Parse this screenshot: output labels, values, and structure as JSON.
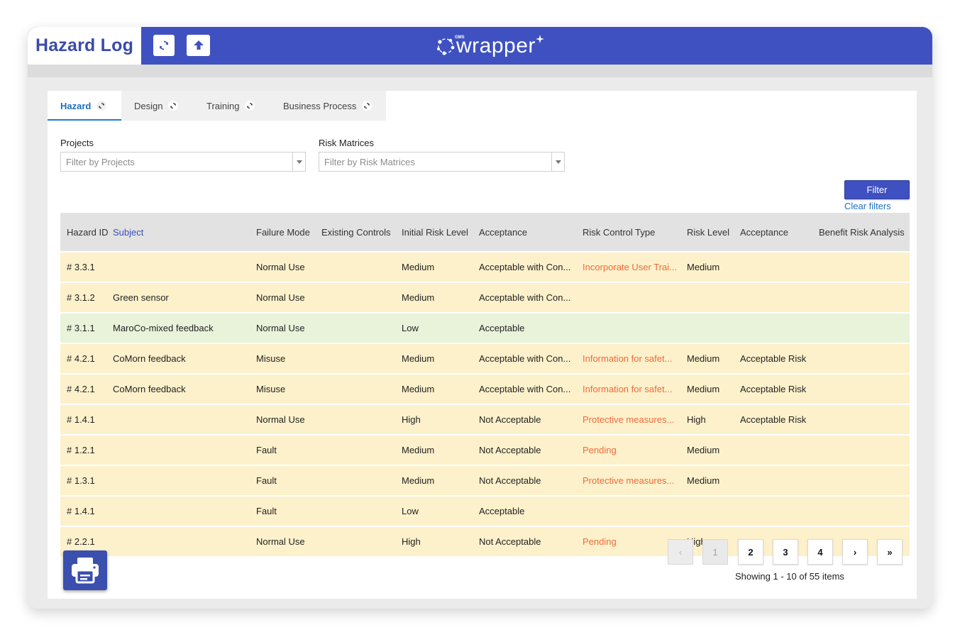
{
  "app": {
    "title": "Hazard Log",
    "logo_text": "wrapper",
    "logo_superscript": "GMS"
  },
  "toolbar": {
    "refresh_icon": "refresh-icon",
    "upload_icon": "upload-arrow-icon"
  },
  "tabs": [
    {
      "label": "Hazard",
      "active": true
    },
    {
      "label": "Design",
      "active": false
    },
    {
      "label": "Training",
      "active": false
    },
    {
      "label": "Business Process",
      "active": false
    }
  ],
  "filters": {
    "projects_label": "Projects",
    "projects_placeholder": "Filter by Projects",
    "risk_label": "Risk Matrices",
    "risk_placeholder": "Filter by Risk Matrices",
    "filter_button": "Filter",
    "clear_link": "Clear filters"
  },
  "grid": {
    "columns": [
      "Hazard ID",
      "Subject",
      "Failure Mode",
      "Existing Controls",
      "Initial Risk Level",
      "Acceptance",
      "Risk Control Type",
      "Risk Level",
      "Acceptance",
      "Benefit Risk Analysis"
    ],
    "rows": [
      {
        "id": "# 3.3.1",
        "subject": "",
        "failure_mode": "Normal Use",
        "existing_controls": "",
        "initial_risk": "Medium",
        "acceptance": "Acceptable with Con...",
        "risk_control_type": "Incorporate User Trai...",
        "risk_level": "Medium",
        "acceptance2": "",
        "benefit": "",
        "tone": "yellow"
      },
      {
        "id": "# 3.1.2",
        "subject": "Green sensor",
        "failure_mode": "Normal Use",
        "existing_controls": "",
        "initial_risk": "Medium",
        "acceptance": "Acceptable with Con...",
        "risk_control_type": "",
        "risk_level": "",
        "acceptance2": "",
        "benefit": "",
        "tone": "yellow"
      },
      {
        "id": "# 3.1.1",
        "subject": "MaroCo-mixed feedback",
        "failure_mode": "Normal Use",
        "existing_controls": "",
        "initial_risk": "Low",
        "acceptance": "Acceptable",
        "risk_control_type": "",
        "risk_level": "",
        "acceptance2": "",
        "benefit": "",
        "tone": "green"
      },
      {
        "id": "# 4.2.1",
        "subject": "CoMorn feedback",
        "failure_mode": "Misuse",
        "existing_controls": "",
        "initial_risk": "Medium",
        "acceptance": "Acceptable with Con...",
        "risk_control_type": "Information for safet...",
        "risk_level": "Medium",
        "acceptance2": "Acceptable Risk",
        "benefit": "",
        "tone": "yellow"
      },
      {
        "id": "# 4.2.1",
        "subject": "CoMorn feedback",
        "failure_mode": "Misuse",
        "existing_controls": "",
        "initial_risk": "Medium",
        "acceptance": "Acceptable with Con...",
        "risk_control_type": "Information for safet...",
        "risk_level": "Medium",
        "acceptance2": "Acceptable Risk",
        "benefit": "",
        "tone": "yellow"
      },
      {
        "id": "# 1.4.1",
        "subject": "",
        "failure_mode": "Normal Use",
        "existing_controls": "",
        "initial_risk": "High",
        "acceptance": "Not Acceptable",
        "risk_control_type": "Protective measures...",
        "risk_level": "High",
        "acceptance2": "Acceptable Risk",
        "benefit": "",
        "tone": "yellow"
      },
      {
        "id": "# 1.2.1",
        "subject": "",
        "failure_mode": "Fault",
        "existing_controls": "",
        "initial_risk": "Medium",
        "acceptance": "Not Acceptable",
        "risk_control_type": "Pending",
        "risk_level": "Medium",
        "acceptance2": "",
        "benefit": "",
        "tone": "yellow"
      },
      {
        "id": "# 1.3.1",
        "subject": "",
        "failure_mode": "Fault",
        "existing_controls": "",
        "initial_risk": "Medium",
        "acceptance": "Not Acceptable",
        "risk_control_type": "Protective measures...",
        "risk_level": "Medium",
        "acceptance2": "",
        "benefit": "",
        "tone": "yellow"
      },
      {
        "id": "# 1.4.1",
        "subject": "",
        "failure_mode": "Fault",
        "existing_controls": "",
        "initial_risk": "Low",
        "acceptance": "Acceptable",
        "risk_control_type": "",
        "risk_level": "",
        "acceptance2": "",
        "benefit": "",
        "tone": "yellow"
      },
      {
        "id": "# 2.2.1",
        "subject": "",
        "failure_mode": "Normal Use",
        "existing_controls": "",
        "initial_risk": "High",
        "acceptance": "Not Acceptable",
        "risk_control_type": "Pending",
        "risk_level": "High",
        "acceptance2": "",
        "benefit": "",
        "tone": "yellow"
      }
    ]
  },
  "pagination": {
    "prev": "‹",
    "pages": [
      "1",
      "2",
      "3",
      "4"
    ],
    "current": "1",
    "next": "›",
    "last": "»",
    "summary": "Showing 1 - 10 of 55 items"
  },
  "colors": {
    "brand": "#3f51c1",
    "row_yellow": "#fdf1cb",
    "row_green": "#e8f3da",
    "risk_control_text": "#ee6b3b",
    "link": "#1f6fbf"
  }
}
